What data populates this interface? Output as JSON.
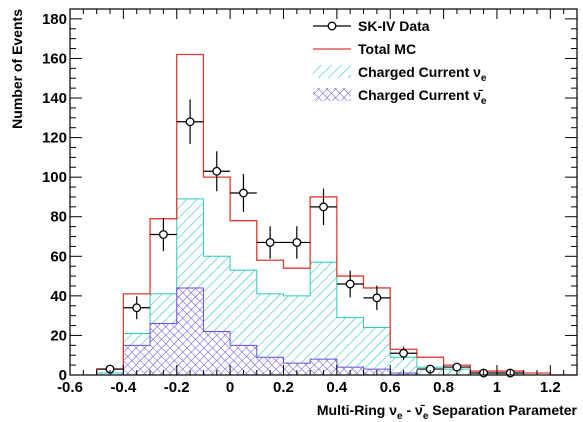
{
  "chart_data": {
    "type": "histogram",
    "xlabel_parts": [
      "Multi-Ring ",
      "ν",
      "e",
      " - ",
      "ν̄",
      "e",
      " Separation Parameter"
    ],
    "ylabel": "Number of Events",
    "xlim": [
      -0.6,
      1.3
    ],
    "ylim": [
      0,
      185
    ],
    "xticks": [
      "-0.6",
      "-0.4",
      "-0.2",
      "0",
      "0.2",
      "0.4",
      "0.6",
      "0.8",
      "1",
      "1.2"
    ],
    "xtick_values": [
      -0.6,
      -0.4,
      -0.2,
      0,
      0.2,
      0.4,
      0.6,
      0.8,
      1.0,
      1.2
    ],
    "yticks": [
      "0",
      "20",
      "40",
      "60",
      "80",
      "100",
      "120",
      "140",
      "160",
      "180"
    ],
    "ytick_values": [
      0,
      20,
      40,
      60,
      80,
      100,
      120,
      140,
      160,
      180
    ],
    "bin_edges": [
      -0.5,
      -0.4,
      -0.3,
      -0.2,
      -0.1,
      0.0,
      0.1,
      0.2,
      0.3,
      0.4,
      0.5,
      0.6,
      0.7,
      0.8,
      0.9,
      1.0,
      1.1,
      1.2,
      1.3
    ],
    "series": [
      {
        "name": "SK-IV Data",
        "style": "points",
        "color": "#000000",
        "values": [
          3,
          34,
          71,
          128,
          103,
          92,
          67,
          67,
          85,
          46,
          39,
          11,
          3,
          4,
          1,
          1,
          0,
          0
        ],
        "errors": [
          1.7,
          5.8,
          8.4,
          11.3,
          10.1,
          9.6,
          8.2,
          8.2,
          9.2,
          6.8,
          6.2,
          3.3,
          1.7,
          2.0,
          1.0,
          1.0,
          0,
          0
        ]
      },
      {
        "name": "Total MC",
        "style": "step",
        "color": "#e03c31",
        "values": [
          3,
          41,
          79,
          162,
          100,
          78,
          58,
          54,
          90,
          50,
          44,
          13,
          9,
          5,
          2,
          2,
          1,
          0
        ]
      },
      {
        "name_parts": [
          "Charged Current ",
          "ν",
          "e"
        ],
        "style": "hatch-forward",
        "color": "#2cc8c0",
        "values": [
          1,
          21,
          41,
          89,
          60,
          53,
          41,
          40,
          57,
          29,
          24,
          9,
          4,
          3,
          1,
          1,
          0,
          0
        ]
      },
      {
        "name_parts": [
          "Charged Current ",
          "ν̄",
          "e"
        ],
        "style": "crosshatch",
        "color": "#6a4ddc",
        "values": [
          0,
          15,
          26,
          44,
          22,
          15,
          9,
          6,
          8,
          4,
          3,
          1,
          0,
          0,
          0,
          0,
          0,
          0
        ]
      }
    ],
    "legend_position": "top-right"
  }
}
